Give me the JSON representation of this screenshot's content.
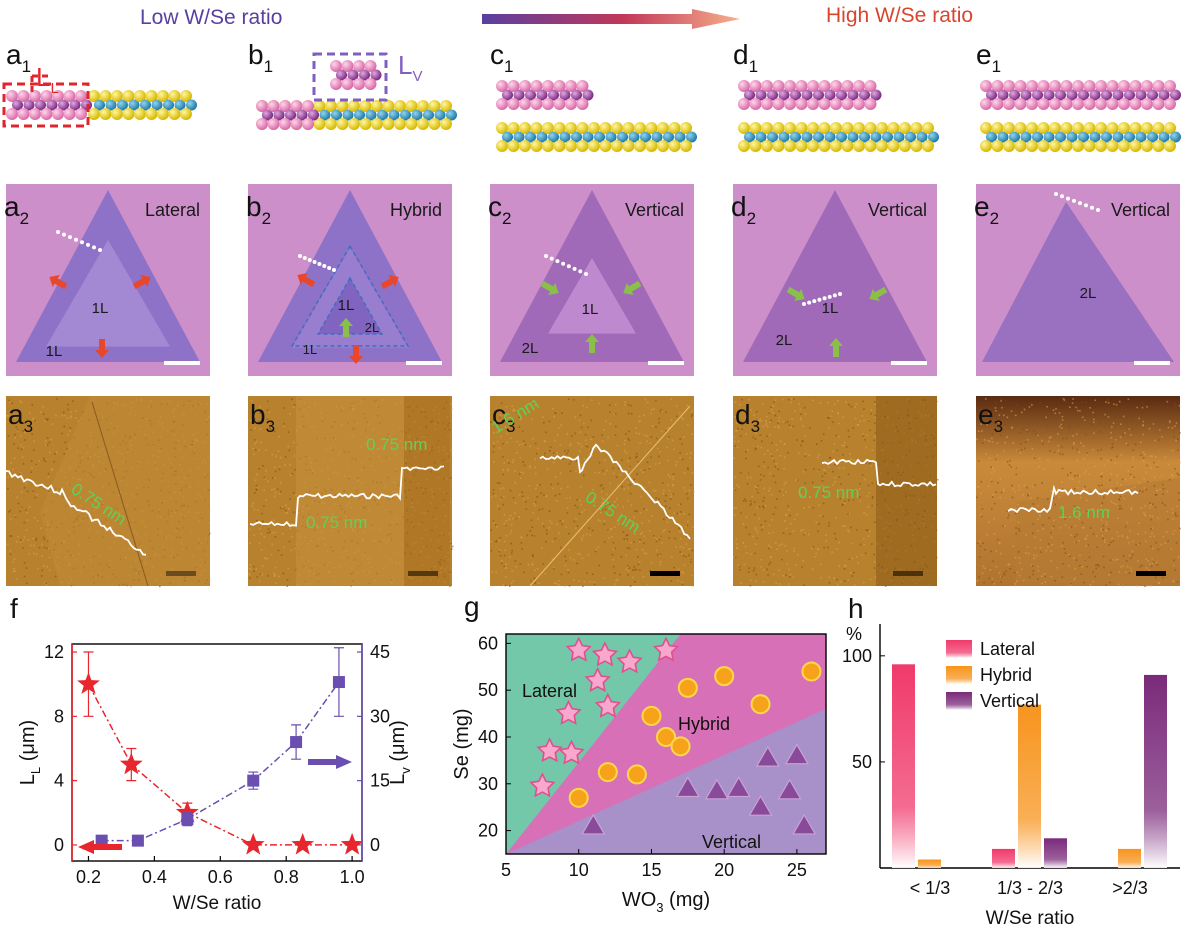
{
  "header": {
    "low_label": "Low W/Se ratio",
    "high_label": "High W/Se ratio"
  },
  "colors": {
    "low": "#5a3fa0",
    "high": "#e0492f",
    "lateral": "#f03a6b",
    "hybrid": "#f7941d",
    "vertical": "#7a2a7a",
    "optical_bg": "#c98ac4",
    "afm_bg": "#b87a2a",
    "measure": "#4cd14c"
  },
  "schematics": [
    {
      "letter": "a",
      "sub": "1",
      "tag": "L",
      "tag_sub": "L"
    },
    {
      "letter": "b",
      "sub": "1",
      "tag": "L",
      "tag_sub": "V"
    },
    {
      "letter": "c",
      "sub": "1"
    },
    {
      "letter": "d",
      "sub": "1"
    },
    {
      "letter": "e",
      "sub": "1"
    }
  ],
  "optical": [
    {
      "letter": "a",
      "sub": "2",
      "type": "Lateral",
      "labels": [
        "1L",
        "1L"
      ]
    },
    {
      "letter": "b",
      "sub": "2",
      "type": "Hybrid",
      "labels": [
        "1L",
        "2L",
        "1L"
      ]
    },
    {
      "letter": "c",
      "sub": "2",
      "type": "Vertical",
      "labels": [
        "1L",
        "2L"
      ]
    },
    {
      "letter": "d",
      "sub": "2",
      "type": "Vertical",
      "labels": [
        "1L",
        "2L"
      ]
    },
    {
      "letter": "e",
      "sub": "2",
      "type": "Vertical",
      "labels": [
        "2L"
      ]
    }
  ],
  "afm": [
    {
      "letter": "a",
      "sub": "3",
      "heights": [
        "0.75 nm"
      ]
    },
    {
      "letter": "b",
      "sub": "3",
      "heights": [
        "0.75 nm",
        "0.75 nm"
      ]
    },
    {
      "letter": "c",
      "sub": "3",
      "heights": [
        "1.6 nm",
        "0.75 nm"
      ]
    },
    {
      "letter": "d",
      "sub": "3",
      "heights": [
        "0.75 nm"
      ]
    },
    {
      "letter": "e",
      "sub": "3",
      "heights": [
        "1.6 nm"
      ]
    }
  ],
  "chart_data": [
    {
      "panel": "f",
      "type": "line",
      "xlabel": "W/Se ratio",
      "ylabel_left": "L",
      "ylabel_left_sub": "L",
      "ylabel_left_unit": " (μm)",
      "ylabel_right": "L",
      "ylabel_right_sub": "v",
      "ylabel_right_unit": " (μm)",
      "xlim": [
        0.15,
        1.03
      ],
      "xticks": [
        "0.2",
        "0.4",
        "0.6",
        "0.8",
        "1.0"
      ],
      "xtick_values": [
        0.2,
        0.4,
        0.6,
        0.8,
        1.0
      ],
      "ylim_left": [
        -1,
        12.5
      ],
      "yticks_left": [
        "0",
        "4",
        "8",
        "12"
      ],
      "ytick_left_values": [
        0,
        4,
        8,
        12
      ],
      "ylim_right": [
        -3.75,
        46.875
      ],
      "yticks_right": [
        "0",
        "15",
        "30",
        "45"
      ],
      "ytick_right_values": [
        0,
        15,
        30,
        45
      ],
      "series": [
        {
          "name": "L_L",
          "axis": "left",
          "marker": "star",
          "color": "#e8262d",
          "x": [
            0.2,
            0.33,
            0.5,
            0.7,
            0.85,
            1.0
          ],
          "y": [
            10,
            5,
            2,
            0,
            0,
            0
          ],
          "err": [
            2,
            1,
            0.6,
            0,
            0,
            0
          ]
        },
        {
          "name": "L_v",
          "axis": "right",
          "marker": "square",
          "color": "#6a4fb0",
          "x": [
            0.24,
            0.35,
            0.5,
            0.7,
            0.83,
            0.96
          ],
          "y": [
            1,
            1,
            6,
            15,
            24,
            38
          ],
          "err": [
            0,
            0,
            1.5,
            2,
            4,
            8
          ]
        }
      ]
    },
    {
      "panel": "g",
      "type": "scatter",
      "xlabel": "WO",
      "xlabel_sub": "3",
      "xlabel_unit": " (mg)",
      "ylabel": "Se (mg)",
      "xlim": [
        5,
        27
      ],
      "ylim": [
        15,
        62
      ],
      "xticks": [
        "5",
        "10",
        "15",
        "20",
        "25"
      ],
      "xtick_values": [
        5,
        10,
        15,
        20,
        25
      ],
      "yticks": [
        "20",
        "30",
        "40",
        "50",
        "60"
      ],
      "ytick_values": [
        20,
        30,
        40,
        50,
        60
      ],
      "regions": [
        "Lateral",
        "Hybrid",
        "Vertical"
      ],
      "series": [
        {
          "name": "Lateral",
          "marker": "star",
          "color": "#f07ab0",
          "x": [
            7.5,
            8,
            9.3,
            9.5,
            10,
            11.3,
            11.8,
            12,
            13.5,
            16
          ],
          "y": [
            29.5,
            37,
            45,
            36.5,
            58.5,
            52,
            57.5,
            46.5,
            56,
            58.5
          ]
        },
        {
          "name": "Hybrid",
          "marker": "circle",
          "color": "#f7a21b",
          "x": [
            10,
            12,
            14,
            15,
            16,
            17,
            17.5,
            20,
            22.5,
            26
          ],
          "y": [
            27,
            32.5,
            32,
            44.5,
            40,
            38,
            50.5,
            53,
            47,
            54
          ]
        },
        {
          "name": "Vertical",
          "marker": "triangle",
          "color": "#8a4a9a",
          "x": [
            11,
            17.5,
            19.5,
            21,
            22.5,
            23,
            24.5,
            25,
            25.5
          ],
          "y": [
            21,
            29,
            28.5,
            29,
            25,
            35.5,
            28.5,
            36,
            21
          ]
        }
      ]
    },
    {
      "panel": "h",
      "type": "bar",
      "xlabel": "W/Se ratio",
      "ylabel": "%",
      "categories": [
        "< 1/3",
        "1/3 - 2/3",
        ">2/3"
      ],
      "ylim": [
        0,
        115
      ],
      "yticks": [
        "50",
        "100"
      ],
      "ytick_values": [
        50,
        100
      ],
      "series": [
        {
          "name": "Lateral",
          "color": "#f03a6b",
          "values": [
            96,
            9,
            0
          ]
        },
        {
          "name": "Hybrid",
          "color": "#f7941d",
          "values": [
            4,
            77,
            9
          ]
        },
        {
          "name": "Vertical",
          "color": "#7a2a7a",
          "values": [
            0,
            14,
            91
          ]
        }
      ]
    }
  ]
}
